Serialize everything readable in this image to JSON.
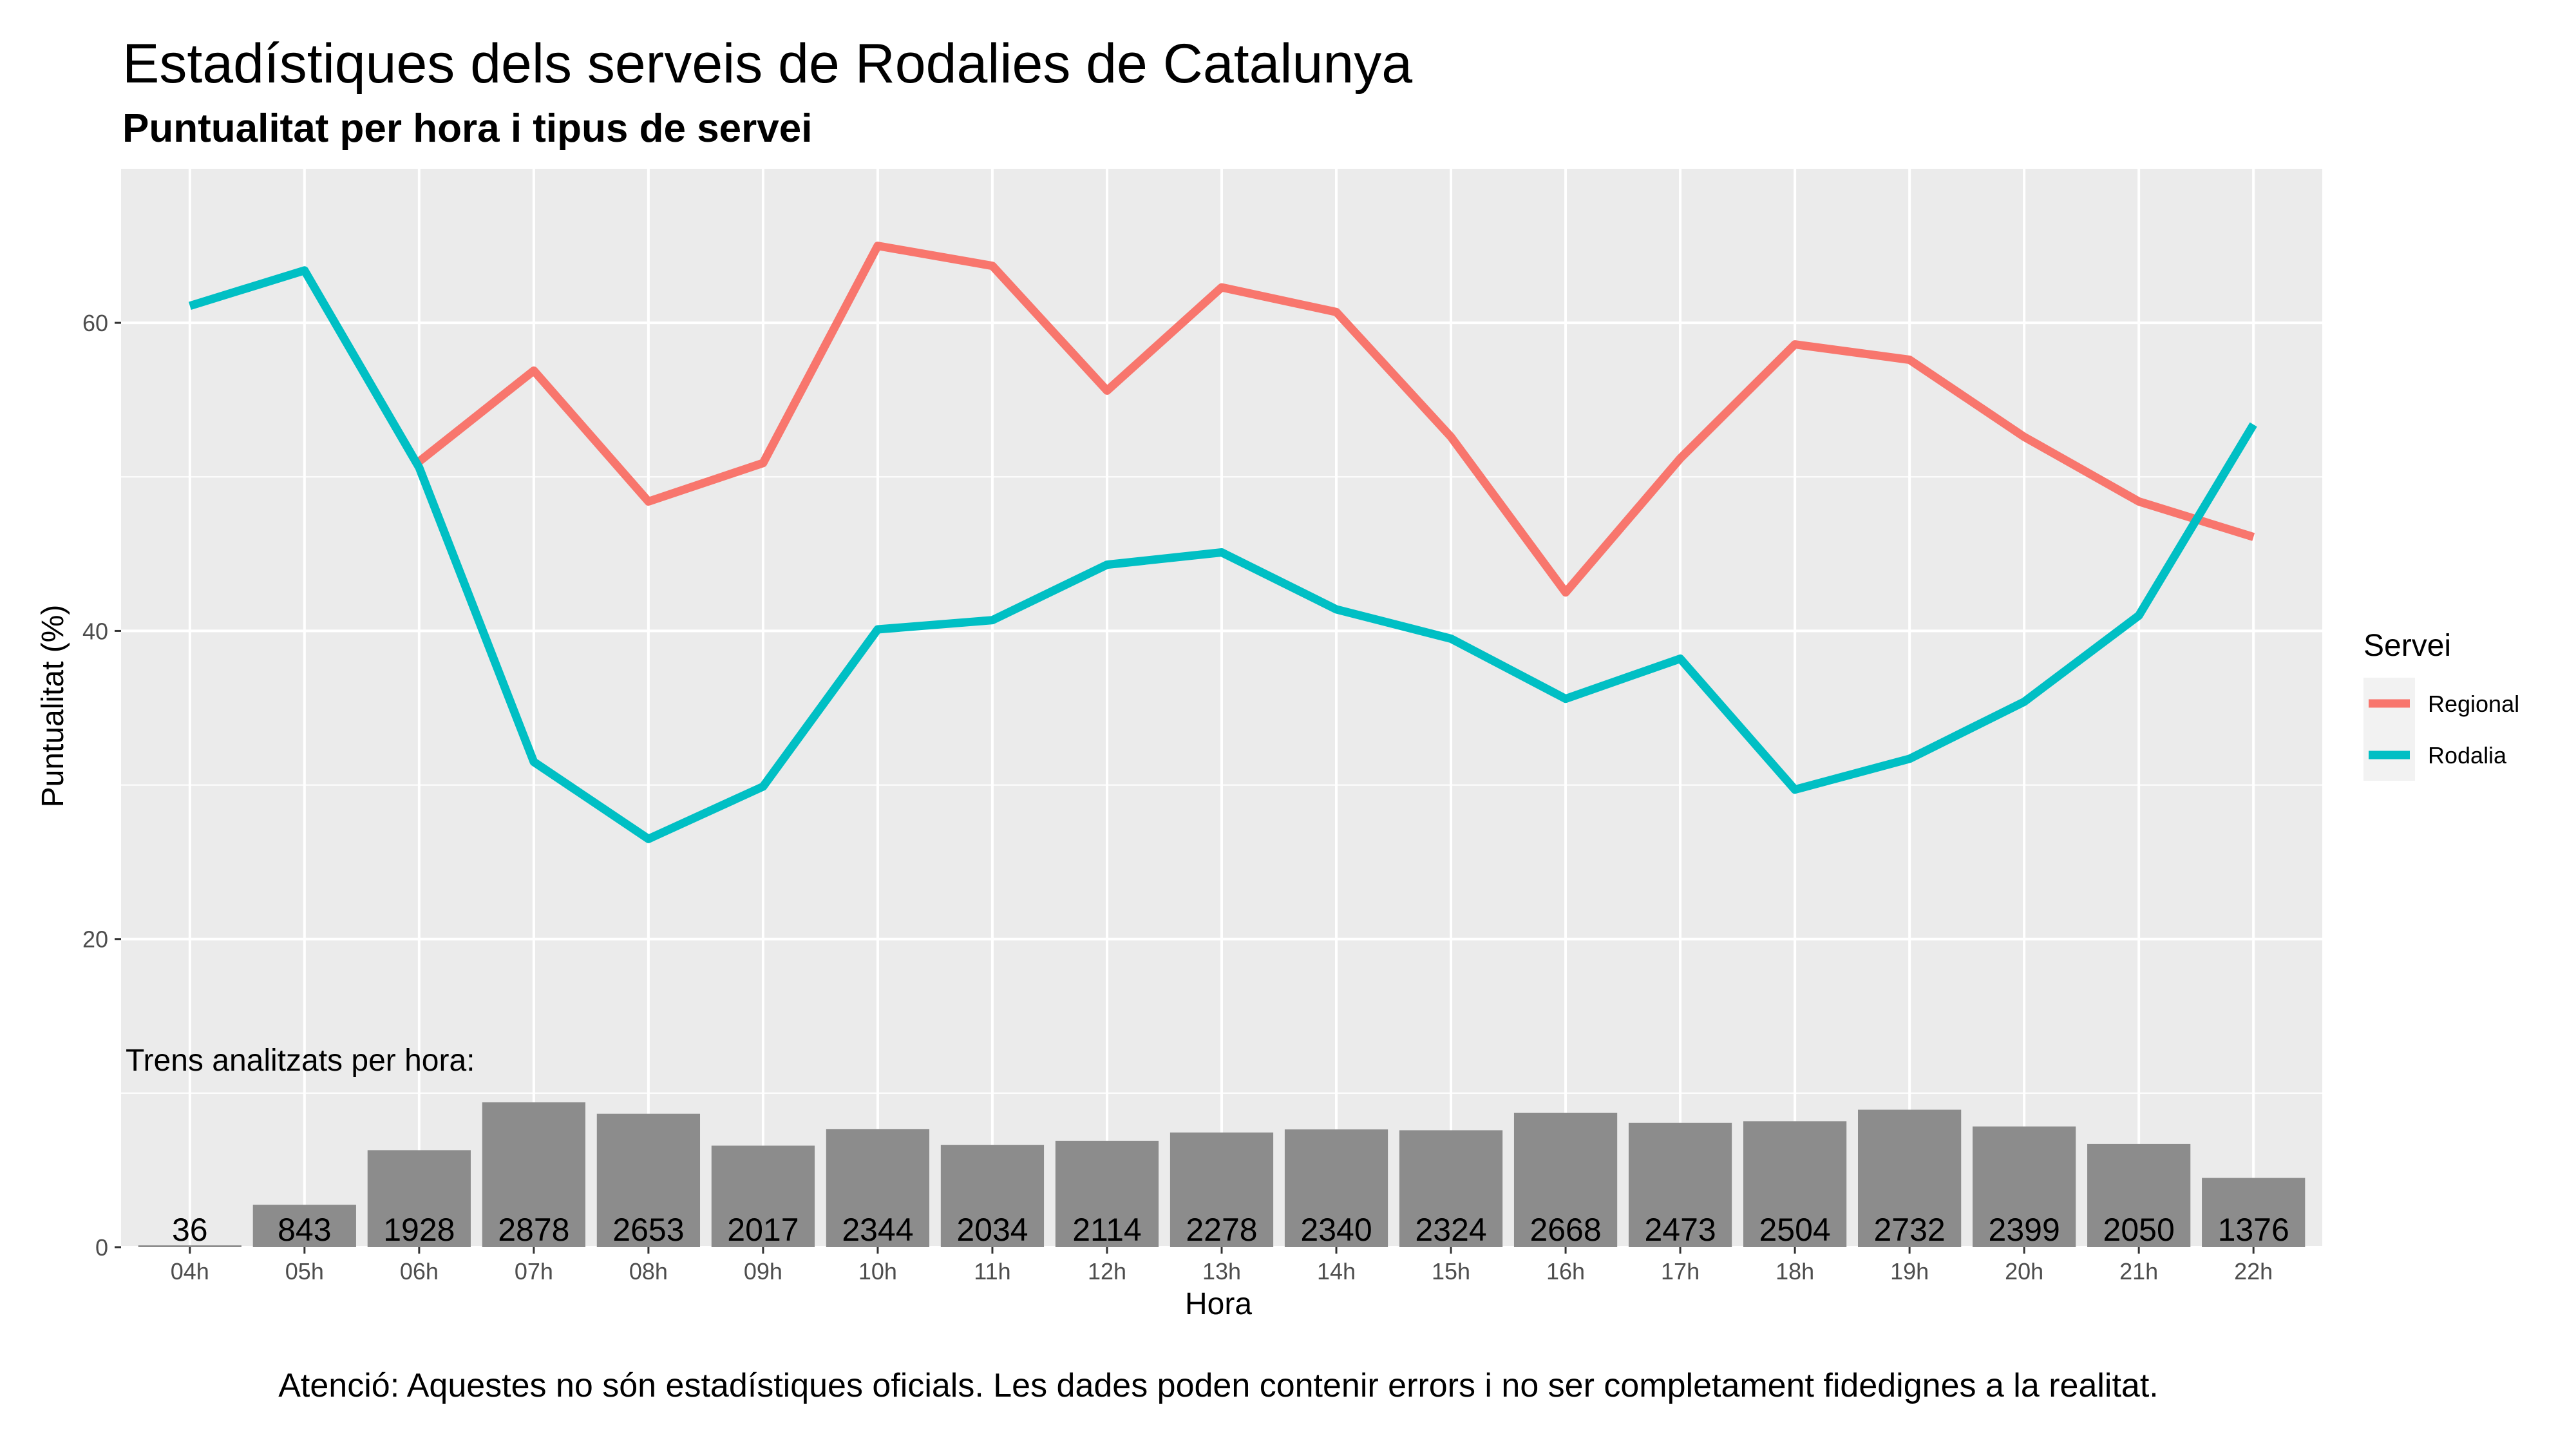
{
  "chart_data": {
    "type": "line",
    "title": "Estadístiques dels serveis de Rodalies de Catalunya",
    "subtitle": "Puntualitat per hora i tipus de servei",
    "xlabel": "Hora",
    "ylabel": "Puntualitat (%)",
    "ylim": [
      0,
      70
    ],
    "y_ticks": [
      0,
      20,
      40,
      60
    ],
    "grid": true,
    "categories": [
      "04h",
      "05h",
      "06h",
      "07h",
      "08h",
      "09h",
      "10h",
      "11h",
      "12h",
      "13h",
      "14h",
      "15h",
      "16h",
      "17h",
      "18h",
      "19h",
      "20h",
      "21h",
      "22h"
    ],
    "series": [
      {
        "name": "Regional",
        "color": "#F8766D",
        "values": [
          null,
          null,
          51.0,
          56.9,
          48.4,
          50.9,
          65.0,
          63.7,
          55.6,
          62.3,
          60.7,
          52.6,
          42.5,
          51.2,
          58.6,
          57.6,
          52.6,
          48.4,
          46.1
        ]
      },
      {
        "name": "Rodalia",
        "color": "#00BFC4",
        "values": [
          61.1,
          63.4,
          50.6,
          31.5,
          26.5,
          29.9,
          40.1,
          40.7,
          44.3,
          45.1,
          41.4,
          39.5,
          35.6,
          38.2,
          29.7,
          31.7,
          35.4,
          41.0,
          53.4
        ]
      }
    ],
    "bars": {
      "label": "Trens analitzats per hora:",
      "color": "#8c8c8c",
      "scale_max": 2878,
      "scale_top_y": 9.4,
      "values": [
        36,
        843,
        1928,
        2878,
        2653,
        2017,
        2344,
        2034,
        2114,
        2278,
        2340,
        2324,
        2668,
        2473,
        2504,
        2732,
        2399,
        2050,
        1376
      ]
    },
    "legend": {
      "title": "Servei",
      "placement": "right",
      "entries": [
        "Regional",
        "Rodalia"
      ]
    },
    "caption": "Atenció: Aquestes no són estadístiques oficials. Les dades poden contenir errors i no ser completament fidedignes a la realitat."
  }
}
